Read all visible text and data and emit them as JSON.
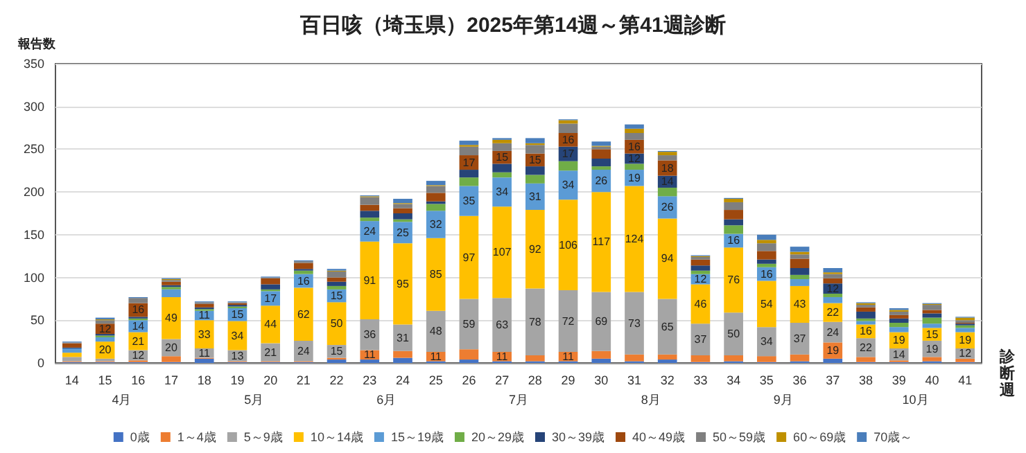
{
  "chart_data": {
    "type": "bar",
    "stacked": true,
    "title": "百日咳（埼玉県）2025年第14週～第41週診断",
    "ylabel": "報告数",
    "xlabel": "診断週",
    "categories": [
      "14",
      "15",
      "16",
      "17",
      "18",
      "19",
      "20",
      "21",
      "22",
      "23",
      "24",
      "25",
      "26",
      "27",
      "28",
      "29",
      "30",
      "31",
      "32",
      "33",
      "34",
      "35",
      "36",
      "37",
      "38",
      "39",
      "40",
      "41"
    ],
    "ylim": [
      0,
      350
    ],
    "yticks": [
      0,
      50,
      100,
      150,
      200,
      250,
      300,
      350
    ],
    "grid": "y",
    "legend": "bottom",
    "annotations": [
      "4月",
      "5月",
      "6月",
      "7月",
      "8月",
      "9月",
      "10月"
    ],
    "series": [
      {
        "name": "0歳",
        "color": "#4472c4",
        "values": [
          1,
          1,
          1,
          1,
          5,
          1,
          1,
          1,
          4,
          4,
          6,
          2,
          4,
          2,
          2,
          2,
          5,
          2,
          4,
          1,
          2,
          1,
          2,
          5,
          1,
          1,
          2,
          1
        ]
      },
      {
        "name": "1～4歳",
        "color": "#ed7d31",
        "values": [
          1,
          1,
          2,
          7,
          1,
          1,
          1,
          1,
          2,
          11,
          8,
          11,
          12,
          11,
          7,
          11,
          9,
          8,
          6,
          8,
          7,
          7,
          8,
          19,
          6,
          2,
          5,
          4
        ],
        "value_labels": [
          null,
          null,
          null,
          null,
          null,
          null,
          null,
          null,
          null,
          "11",
          null,
          "11",
          null,
          "11",
          null,
          "11",
          null,
          null,
          null,
          null,
          null,
          null,
          null,
          "19",
          null,
          null,
          null,
          null
        ]
      },
      {
        "name": "5～9歳",
        "color": "#a5a5a5",
        "values": [
          5,
          3,
          12,
          20,
          11,
          13,
          21,
          24,
          15,
          36,
          31,
          48,
          59,
          63,
          78,
          72,
          69,
          73,
          65,
          37,
          50,
          34,
          37,
          24,
          22,
          14,
          19,
          12
        ],
        "value_labels": [
          null,
          null,
          "12",
          "20",
          "11",
          "13",
          "21",
          "24",
          "15",
          "36",
          "31",
          "48",
          "59",
          "63",
          "78",
          "72",
          "69",
          "73",
          "65",
          "37",
          "50",
          "34",
          "37",
          "24",
          "22",
          "14",
          "19",
          "12"
        ]
      },
      {
        "name": "10～14歳",
        "color": "#ffc000",
        "values": [
          5,
          20,
          21,
          49,
          33,
          34,
          44,
          62,
          50,
          91,
          95,
          85,
          97,
          107,
          92,
          106,
          117,
          124,
          94,
          46,
          76,
          54,
          43,
          22,
          16,
          19,
          15,
          19
        ],
        "value_labels": [
          null,
          "20",
          "21",
          "49",
          "33",
          "34",
          "44",
          "62",
          "50",
          "91",
          "95",
          "85",
          "97",
          "107",
          "92",
          "106",
          "117",
          "124",
          "94",
          "46",
          "76",
          "54",
          "43",
          "22",
          "16",
          "19",
          "15",
          "19"
        ]
      },
      {
        "name": "15～19歳",
        "color": "#5b9bd5",
        "values": [
          5,
          5,
          14,
          9,
          11,
          15,
          17,
          16,
          15,
          24,
          25,
          32,
          35,
          34,
          31,
          34,
          26,
          19,
          26,
          12,
          16,
          16,
          8,
          7,
          4,
          6,
          5,
          5
        ],
        "value_labels": [
          null,
          null,
          "14",
          null,
          "11",
          "15",
          "17",
          "16",
          "15",
          "24",
          "25",
          "32",
          "35",
          "34",
          "31",
          "34",
          "26",
          "19",
          "26",
          "12",
          "16",
          "16",
          null,
          null,
          null,
          null,
          null,
          null
        ]
      },
      {
        "name": "20～29歳",
        "color": "#70ad47",
        "values": [
          0,
          2,
          2,
          3,
          2,
          2,
          2,
          4,
          4,
          4,
          3,
          8,
          10,
          6,
          10,
          11,
          4,
          7,
          10,
          4,
          10,
          4,
          5,
          4,
          3,
          5,
          7,
          3
        ]
      },
      {
        "name": "30～39歳",
        "color": "#264478",
        "values": [
          1,
          2,
          2,
          2,
          2,
          2,
          6,
          2,
          5,
          8,
          7,
          3,
          9,
          10,
          10,
          17,
          9,
          12,
          14,
          6,
          7,
          5,
          8,
          12,
          8,
          5,
          5,
          2
        ],
        "value_labels": [
          null,
          null,
          null,
          null,
          null,
          null,
          null,
          null,
          null,
          null,
          null,
          null,
          null,
          null,
          null,
          "17",
          null,
          "12",
          "14",
          null,
          null,
          null,
          null,
          "12",
          null,
          null,
          null,
          null
        ]
      },
      {
        "name": "40～49歳",
        "color": "#9e480e",
        "values": [
          5,
          12,
          16,
          4,
          4,
          2,
          7,
          7,
          5,
          7,
          6,
          10,
          17,
          15,
          15,
          16,
          11,
          16,
          18,
          7,
          11,
          10,
          11,
          6,
          5,
          4,
          4,
          1
        ],
        "value_labels": [
          null,
          "12",
          "16",
          null,
          null,
          null,
          null,
          null,
          null,
          null,
          null,
          null,
          "17",
          "15",
          "15",
          "16",
          null,
          "16",
          "18",
          null,
          null,
          null,
          null,
          null,
          null,
          null,
          null,
          null
        ]
      },
      {
        "name": "50～59歳",
        "color": "#7f7f7f",
        "values": [
          1,
          4,
          6,
          2,
          2,
          1,
          1,
          2,
          7,
          9,
          5,
          8,
          10,
          9,
          10,
          11,
          3,
          8,
          6,
          3,
          9,
          9,
          5,
          5,
          3,
          4,
          6,
          3
        ]
      },
      {
        "name": "60～69歳",
        "color": "#bf9000",
        "values": [
          0,
          1,
          0,
          1,
          0,
          0,
          0,
          0,
          1,
          1,
          1,
          1,
          2,
          4,
          2,
          4,
          1,
          5,
          4,
          1,
          4,
          4,
          3,
          2,
          2,
          2,
          1,
          3
        ]
      },
      {
        "name": "70歳～",
        "color": "#4a7ebb",
        "values": [
          1,
          2,
          1,
          1,
          1,
          1,
          1,
          1,
          2,
          1,
          5,
          5,
          5,
          2,
          6,
          1,
          5,
          5,
          1,
          1,
          1,
          6,
          6,
          5,
          1,
          2,
          1,
          1
        ]
      }
    ]
  }
}
